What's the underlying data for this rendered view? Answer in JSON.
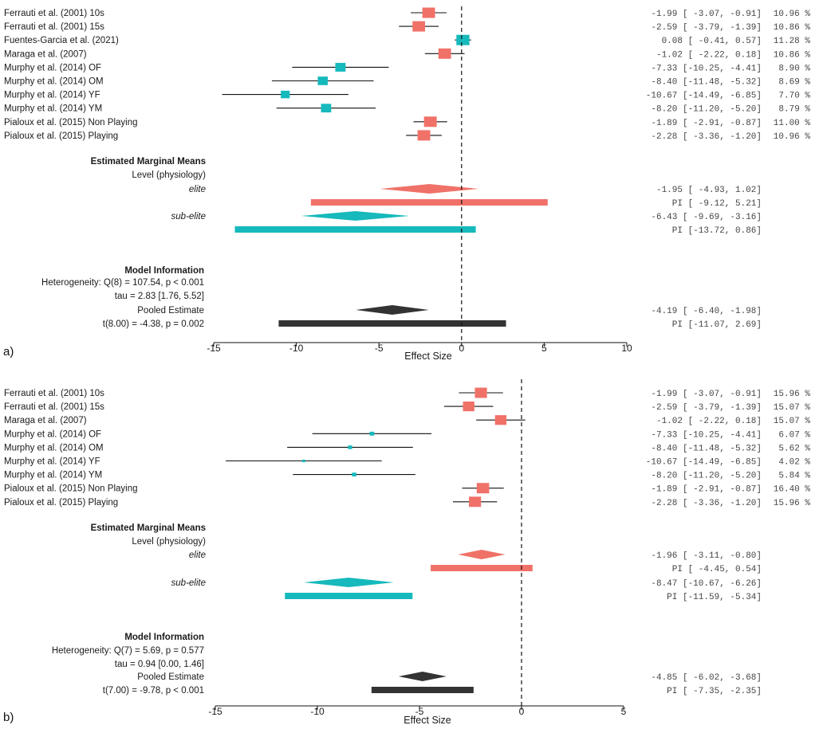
{
  "figure": {
    "colors": {
      "elite": "#F07168",
      "subelite": "#16B9BC",
      "pooled": "#333333",
      "line": "#111111"
    }
  },
  "chart_data": [
    {
      "type": "forest",
      "panel_label": "a)",
      "xlabel": "Effect Size",
      "xlim": [
        -15,
        10
      ],
      "xticks": [
        -15,
        -10,
        -5,
        0,
        5,
        10
      ],
      "xtick_labels": [
        "-15",
        "-10",
        "-5",
        "0",
        "5",
        "10"
      ],
      "studies": [
        {
          "label": "Ferrauti et al. (2001) 10s",
          "group": "elite",
          "est": -1.99,
          "lo": -3.07,
          "hi": -0.91,
          "weight": 10.96,
          "text": "-1.99 [ -3.07, -0.91]",
          "weight_text": "10.96 %"
        },
        {
          "label": "Ferrauti et al. (2001) 15s",
          "group": "elite",
          "est": -2.59,
          "lo": -3.79,
          "hi": -1.39,
          "weight": 10.86,
          "text": "-2.59 [ -3.79, -1.39]",
          "weight_text": "10.86 %"
        },
        {
          "label": "Fuentes-Garcia et al.  (2021)",
          "group": "subelite",
          "est": 0.08,
          "lo": -0.41,
          "hi": 0.57,
          "weight": 11.28,
          "text": "0.08 [ -0.41,  0.57]",
          "weight_text": "11.28 %"
        },
        {
          "label": "Maraga et al. (2007)",
          "group": "elite",
          "est": -1.02,
          "lo": -2.22,
          "hi": 0.18,
          "weight": 10.86,
          "text": "-1.02 [ -2.22,  0.18]",
          "weight_text": "10.86 %"
        },
        {
          "label": "Murphy et al. (2014) OF",
          "group": "subelite",
          "est": -7.33,
          "lo": -10.25,
          "hi": -4.41,
          "weight": 8.9,
          "text": "-7.33 [-10.25, -4.41]",
          "weight_text": "8.90 %"
        },
        {
          "label": "Murphy et al. (2014) OM",
          "group": "subelite",
          "est": -8.4,
          "lo": -11.48,
          "hi": -5.32,
          "weight": 8.69,
          "text": "-8.40 [-11.48, -5.32]",
          "weight_text": "8.69 %"
        },
        {
          "label": "Murphy et al. (2014) YF",
          "group": "subelite",
          "est": -10.67,
          "lo": -14.49,
          "hi": -6.85,
          "weight": 7.7,
          "text": "-10.67 [-14.49, -6.85]",
          "weight_text": "7.70 %"
        },
        {
          "label": "Murphy et al. (2014) YM",
          "group": "subelite",
          "est": -8.2,
          "lo": -11.2,
          "hi": -5.2,
          "weight": 8.79,
          "text": "-8.20 [-11.20, -5.20]",
          "weight_text": "8.79 %"
        },
        {
          "label": "Pialoux et al. (2015) Non Playing",
          "group": "elite",
          "est": -1.89,
          "lo": -2.91,
          "hi": -0.87,
          "weight": 11.0,
          "text": "-1.89 [ -2.91, -0.87]",
          "weight_text": "11.00 %"
        },
        {
          "label": "Pialoux et al. (2015) Playing",
          "group": "elite",
          "est": -2.28,
          "lo": -3.36,
          "hi": -1.2,
          "weight": 10.96,
          "text": "-2.28 [ -3.36, -1.20]",
          "weight_text": "10.96 %"
        }
      ],
      "emm_title": "Estimated Marginal Means",
      "emm_sub": "Level (physiology)",
      "groups": [
        {
          "key": "elite",
          "label": "elite",
          "est": -1.95,
          "lo": -4.93,
          "hi": 1.02,
          "pi_lo": -9.12,
          "pi_hi": 5.21,
          "text": "-1.95 [ -4.93,  1.02]",
          "pi_text": "PI [ -9.12,  5.21]"
        },
        {
          "key": "subelite",
          "label": "sub-elite",
          "est": -6.43,
          "lo": -9.69,
          "hi": -3.16,
          "pi_lo": -13.72,
          "pi_hi": 0.86,
          "text": "-6.43 [ -9.69, -3.16]",
          "pi_text": "PI [-13.72,  0.86]"
        }
      ],
      "model_title": "Model Information",
      "model_lines": [
        "Heterogeneity: Q(8) = 107.54, p < 0.001",
        "tau = 2.83 [1.76, 5.52]"
      ],
      "pooled": {
        "label": "Pooled Estimate",
        "test": "t(8.00) = -4.38, p = 0.002",
        "est": -4.19,
        "lo": -6.4,
        "hi": -1.98,
        "pi_lo": -11.07,
        "pi_hi": 2.69,
        "text": "-4.19 [ -6.40, -1.98]",
        "pi_text": "PI [-11.07,  2.69]"
      }
    },
    {
      "type": "forest",
      "panel_label": "b)",
      "xlabel": "Effect Size",
      "xlim": [
        -15,
        5
      ],
      "xticks": [
        -15,
        -10,
        -5,
        0,
        5
      ],
      "xtick_labels": [
        "-15",
        "-10",
        "-5",
        "0",
        "5"
      ],
      "studies": [
        {
          "label": "Ferrauti et al. (2001) 10s",
          "group": "elite",
          "est": -1.99,
          "lo": -3.07,
          "hi": -0.91,
          "weight": 15.96,
          "text": "-1.99 [ -3.07, -0.91]",
          "weight_text": "15.96 %"
        },
        {
          "label": "Ferrauti et al. (2001) 15s",
          "group": "elite",
          "est": -2.59,
          "lo": -3.79,
          "hi": -1.39,
          "weight": 15.07,
          "text": "-2.59 [ -3.79, -1.39]",
          "weight_text": "15.07 %"
        },
        {
          "label": "Maraga et al. (2007)",
          "group": "elite",
          "est": -1.02,
          "lo": -2.22,
          "hi": 0.18,
          "weight": 15.07,
          "text": "-1.02 [ -2.22,  0.18]",
          "weight_text": "15.07 %"
        },
        {
          "label": "Murphy et al. (2014) OF",
          "group": "subelite",
          "est": -7.33,
          "lo": -10.25,
          "hi": -4.41,
          "weight": 6.07,
          "text": "-7.33 [-10.25, -4.41]",
          "weight_text": "6.07 %"
        },
        {
          "label": "Murphy et al. (2014) OM",
          "group": "subelite",
          "est": -8.4,
          "lo": -11.48,
          "hi": -5.32,
          "weight": 5.62,
          "text": "-8.40 [-11.48, -5.32]",
          "weight_text": "5.62 %"
        },
        {
          "label": "Murphy et al. (2014) YF",
          "group": "subelite",
          "est": -10.67,
          "lo": -14.49,
          "hi": -6.85,
          "weight": 4.02,
          "text": "-10.67 [-14.49, -6.85]",
          "weight_text": "4.02 %"
        },
        {
          "label": "Murphy et al. (2014) YM",
          "group": "subelite",
          "est": -8.2,
          "lo": -11.2,
          "hi": -5.2,
          "weight": 5.84,
          "text": "-8.20 [-11.20, -5.20]",
          "weight_text": "5.84 %"
        },
        {
          "label": "Pialoux et al. (2015) Non Playing",
          "group": "elite",
          "est": -1.89,
          "lo": -2.91,
          "hi": -0.87,
          "weight": 16.4,
          "text": "-1.89 [ -2.91, -0.87]",
          "weight_text": "16.40 %"
        },
        {
          "label": "Pialoux et al. (2015) Playing",
          "group": "elite",
          "est": -2.28,
          "lo": -3.36,
          "hi": -1.2,
          "weight": 15.96,
          "text": "-2.28 [ -3.36, -1.20]",
          "weight_text": "15.96 %"
        }
      ],
      "emm_title": "Estimated Marginal Means",
      "emm_sub": "Level (physiology)",
      "groups": [
        {
          "key": "elite",
          "label": "elite",
          "est": -1.96,
          "lo": -3.11,
          "hi": -0.8,
          "pi_lo": -4.45,
          "pi_hi": 0.54,
          "text": "-1.96 [ -3.11, -0.80]",
          "pi_text": "PI [ -4.45,  0.54]"
        },
        {
          "key": "subelite",
          "label": "sub-elite",
          "est": -8.47,
          "lo": -10.67,
          "hi": -6.26,
          "pi_lo": -11.59,
          "pi_hi": -5.34,
          "text": "-8.47 [-10.67, -6.26]",
          "pi_text": "PI [-11.59, -5.34]"
        }
      ],
      "model_title": "Model Information",
      "model_lines": [
        "Heterogeneity: Q(7) = 5.69, p = 0.577",
        "tau = 0.94 [0.00, 1.46]"
      ],
      "pooled": {
        "label": "Pooled Estimate",
        "test": "t(7.00) = -9.78, p < 0.001",
        "est": -4.85,
        "lo": -6.02,
        "hi": -3.68,
        "pi_lo": -7.35,
        "pi_hi": -2.35,
        "text": "-4.85 [ -6.02, -3.68]",
        "pi_text": "PI [ -7.35, -2.35]"
      }
    }
  ]
}
